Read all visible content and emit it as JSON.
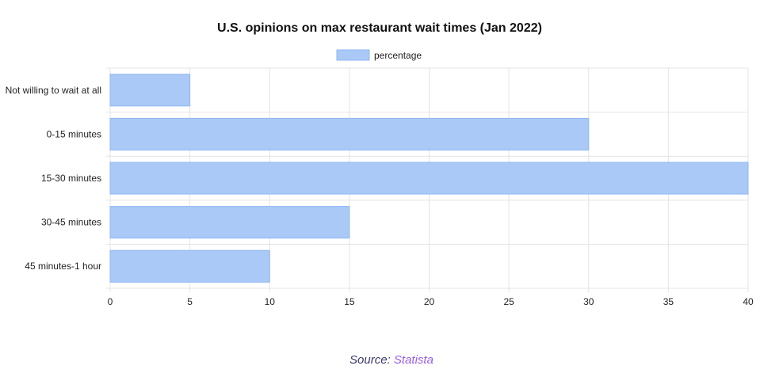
{
  "chart_data": {
    "type": "bar",
    "orientation": "horizontal",
    "title": "U.S. opinions on max restaurant wait times (Jan 2022)",
    "categories": [
      "Not willing to wait at all",
      "0-15 minutes",
      "15-30 minutes",
      "30-45 minutes",
      "45 minutes-1 hour"
    ],
    "series": [
      {
        "name": "percentage",
        "values": [
          5,
          30,
          40,
          15,
          10
        ]
      }
    ],
    "xlim": [
      0,
      40
    ],
    "xticks": [
      "0",
      "5",
      "10",
      "15",
      "20",
      "25",
      "30",
      "35",
      "40"
    ],
    "grid": true,
    "legend_position": "top-center",
    "colors": {
      "bar_fill": "#abc9f7",
      "bar_stroke": "#8fb6f2",
      "grid": "#e4e4e4"
    }
  },
  "source": {
    "prefix": "Source:",
    "name": "Statista"
  }
}
